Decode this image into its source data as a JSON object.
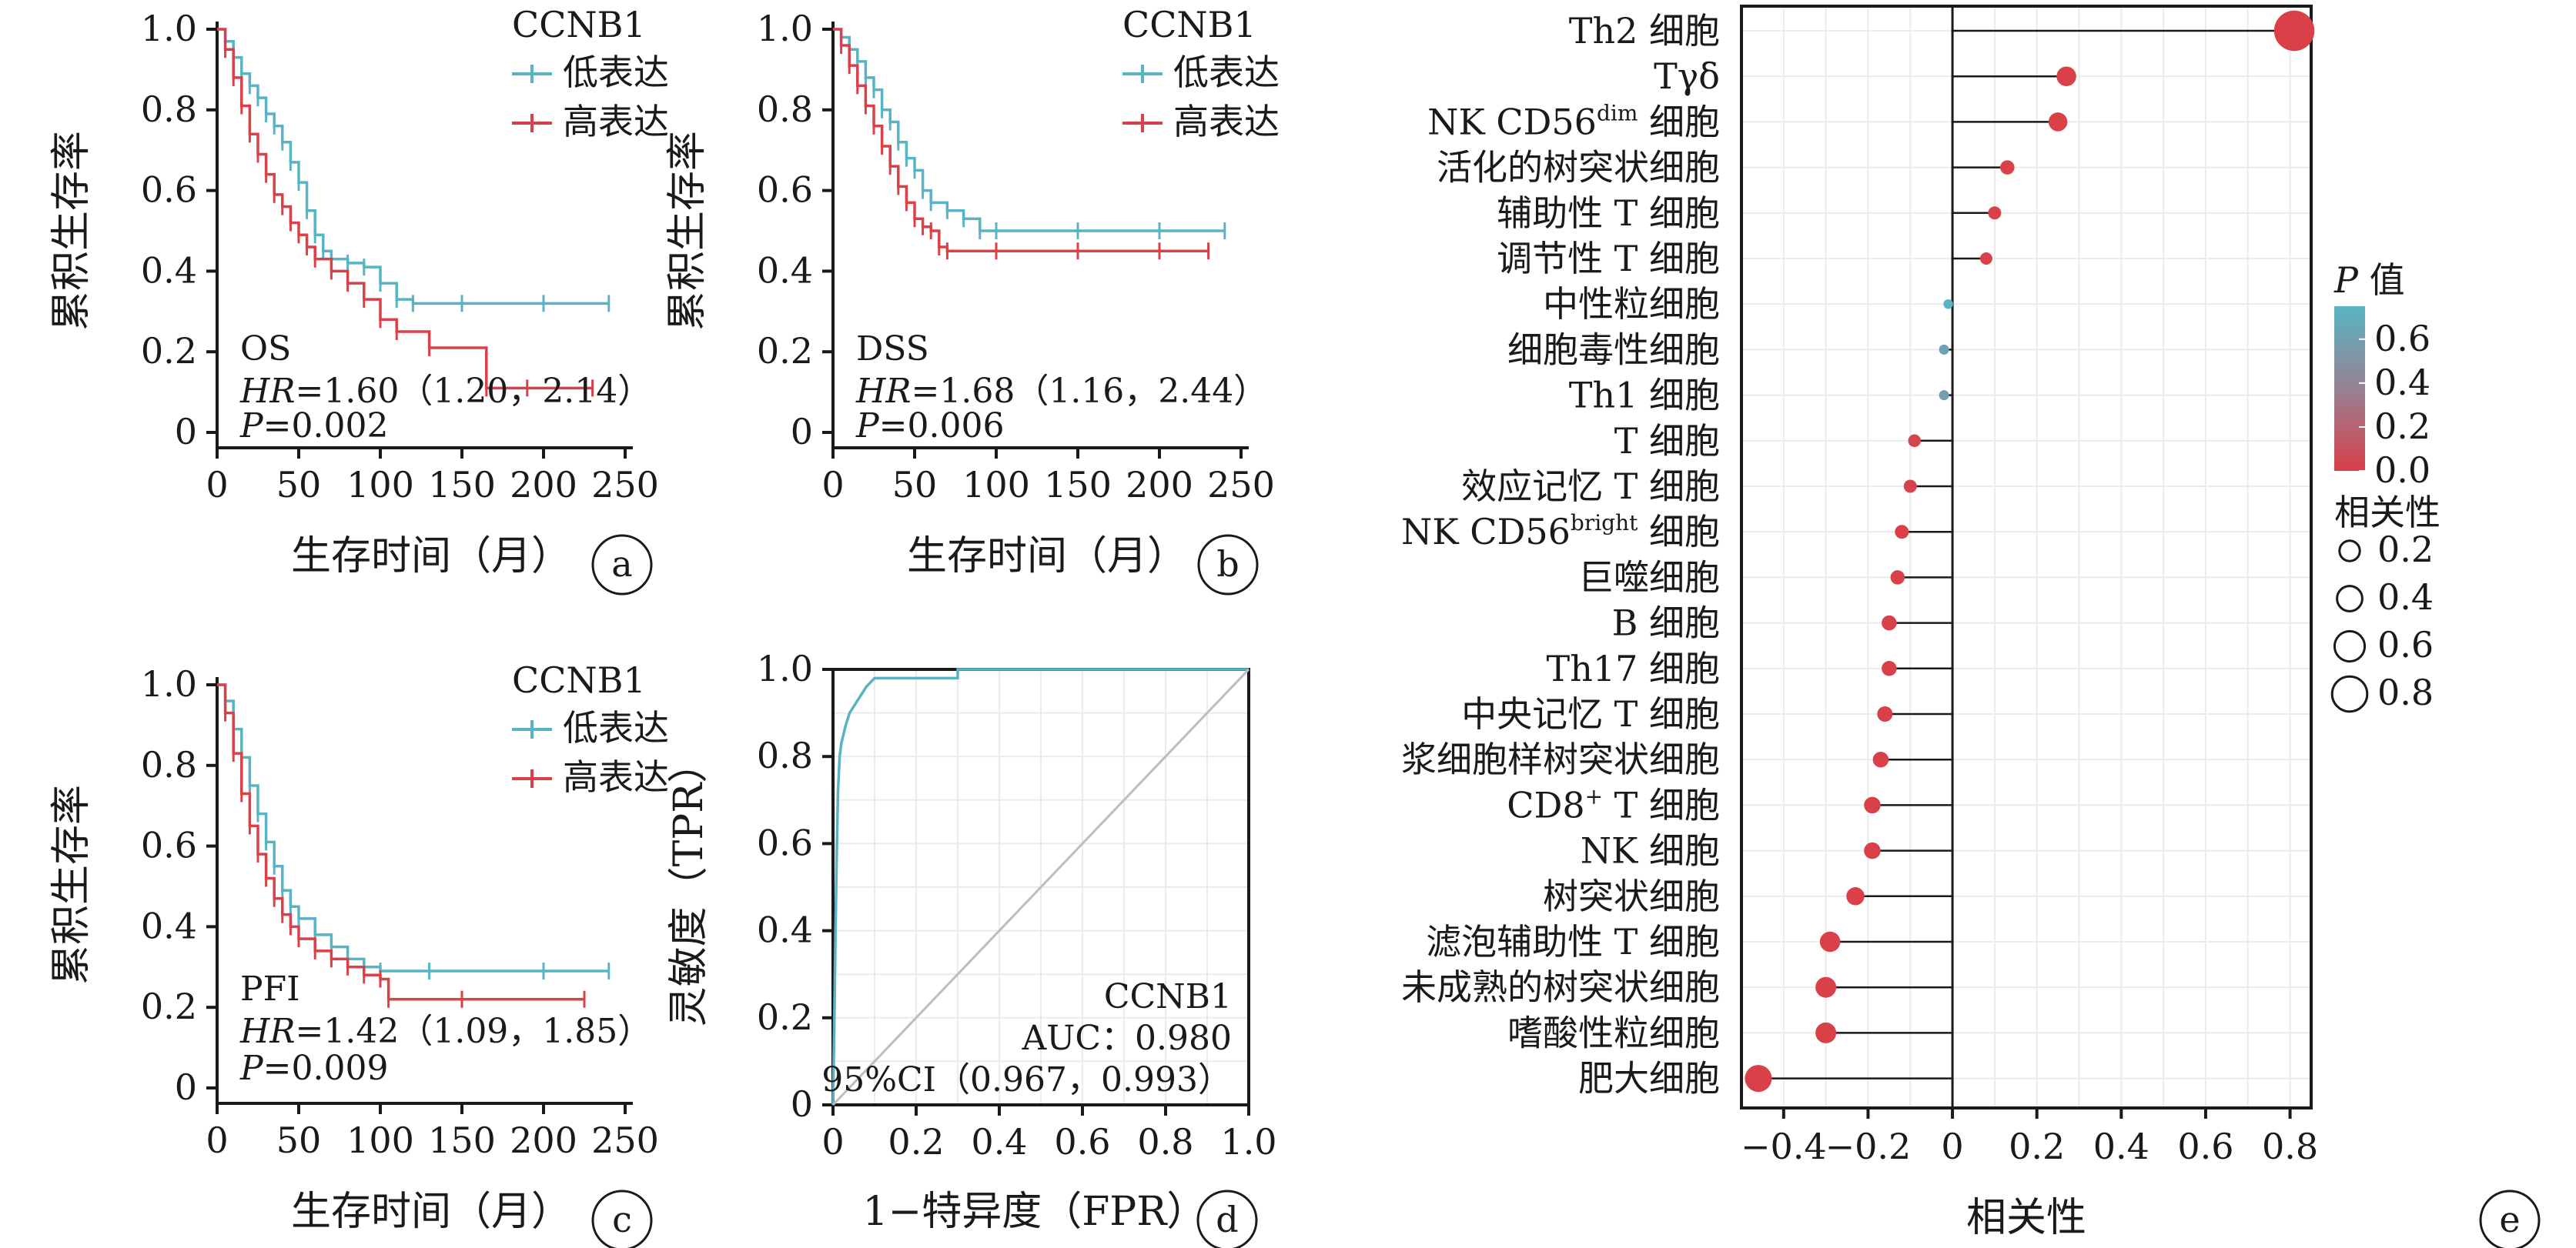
{
  "colors": {
    "low": "#58b4c4",
    "high": "#d94048",
    "grid": "#ebebeb",
    "diag": "#bdbdbd",
    "axis": "#1a1a1a"
  },
  "chart_data": [
    {
      "id": "a",
      "type": "line",
      "ylabel": "累积生存率",
      "xlabel": "生存时间（月）",
      "xlim": [
        0,
        250
      ],
      "ylim": [
        0,
        1.0
      ],
      "xticks": [
        "0",
        "50",
        "100",
        "150",
        "200",
        "250"
      ],
      "yticks": [
        "0",
        "0.2",
        "0.4",
        "0.6",
        "0.8",
        "1.0"
      ],
      "legend_title": "CCNB1",
      "series": [
        {
          "name": "低表达",
          "color": "low",
          "x": [
            0,
            5,
            10,
            15,
            20,
            25,
            30,
            35,
            40,
            45,
            50,
            55,
            60,
            65,
            70,
            80,
            90,
            100,
            110,
            120,
            150,
            200,
            240
          ],
          "y": [
            1.0,
            0.97,
            0.93,
            0.89,
            0.86,
            0.83,
            0.79,
            0.76,
            0.72,
            0.67,
            0.62,
            0.55,
            0.49,
            0.45,
            0.43,
            0.42,
            0.41,
            0.37,
            0.33,
            0.32,
            0.32,
            0.32,
            0.32
          ]
        },
        {
          "name": "高表达",
          "color": "high",
          "x": [
            0,
            5,
            10,
            15,
            20,
            25,
            30,
            35,
            40,
            45,
            50,
            55,
            60,
            70,
            80,
            90,
            100,
            110,
            130,
            165,
            190,
            230
          ],
          "y": [
            1.0,
            0.95,
            0.88,
            0.81,
            0.74,
            0.69,
            0.64,
            0.59,
            0.56,
            0.52,
            0.49,
            0.46,
            0.43,
            0.4,
            0.37,
            0.33,
            0.28,
            0.25,
            0.21,
            0.11,
            0.11,
            0.11
          ]
        }
      ],
      "annotations": [
        "OS",
        "HR=1.60（1.20，2.14）",
        "P=0.002"
      ],
      "panel_label": "a"
    },
    {
      "id": "b",
      "type": "line",
      "ylabel": "累积生存率",
      "xlabel": "生存时间（月）",
      "xlim": [
        0,
        250
      ],
      "ylim": [
        0,
        1.0
      ],
      "xticks": [
        "0",
        "50",
        "100",
        "150",
        "200",
        "250"
      ],
      "yticks": [
        "0",
        "0.2",
        "0.4",
        "0.6",
        "0.8",
        "1.0"
      ],
      "legend_title": "CCNB1",
      "series": [
        {
          "name": "低表达",
          "color": "low",
          "x": [
            0,
            5,
            10,
            15,
            20,
            25,
            30,
            35,
            40,
            45,
            50,
            55,
            60,
            70,
            80,
            90,
            100,
            150,
            200,
            240
          ],
          "y": [
            1.0,
            0.98,
            0.95,
            0.92,
            0.88,
            0.85,
            0.8,
            0.77,
            0.72,
            0.68,
            0.65,
            0.6,
            0.57,
            0.55,
            0.53,
            0.5,
            0.5,
            0.5,
            0.5,
            0.5
          ]
        },
        {
          "name": "高表达",
          "color": "high",
          "x": [
            0,
            5,
            10,
            15,
            20,
            25,
            30,
            35,
            40,
            45,
            50,
            55,
            60,
            65,
            70,
            100,
            150,
            200,
            230
          ],
          "y": [
            1.0,
            0.96,
            0.91,
            0.86,
            0.81,
            0.76,
            0.71,
            0.66,
            0.61,
            0.57,
            0.53,
            0.51,
            0.5,
            0.46,
            0.45,
            0.45,
            0.45,
            0.45,
            0.45
          ]
        }
      ],
      "annotations": [
        "DSS",
        "HR=1.68（1.16，2.44）",
        "P=0.006"
      ],
      "panel_label": "b"
    },
    {
      "id": "c",
      "type": "line",
      "ylabel": "累积生存率",
      "xlabel": "生存时间（月）",
      "xlim": [
        0,
        250
      ],
      "ylim": [
        0,
        1.0
      ],
      "xticks": [
        "0",
        "50",
        "100",
        "150",
        "200",
        "250"
      ],
      "yticks": [
        "0",
        "0.2",
        "0.4",
        "0.6",
        "0.8",
        "1.0"
      ],
      "legend_title": "CCNB1",
      "series": [
        {
          "name": "低表达",
          "color": "low",
          "x": [
            0,
            5,
            10,
            15,
            20,
            25,
            30,
            35,
            40,
            45,
            50,
            60,
            70,
            80,
            90,
            100,
            130,
            200,
            240
          ],
          "y": [
            1.0,
            0.96,
            0.89,
            0.82,
            0.75,
            0.68,
            0.61,
            0.55,
            0.49,
            0.45,
            0.42,
            0.38,
            0.35,
            0.32,
            0.3,
            0.29,
            0.29,
            0.29,
            0.29
          ]
        },
        {
          "name": "高表达",
          "color": "high",
          "x": [
            0,
            5,
            10,
            15,
            20,
            25,
            30,
            35,
            40,
            45,
            50,
            60,
            70,
            80,
            90,
            100,
            105,
            150,
            225
          ],
          "y": [
            1.0,
            0.93,
            0.83,
            0.73,
            0.65,
            0.58,
            0.52,
            0.47,
            0.43,
            0.4,
            0.37,
            0.34,
            0.32,
            0.3,
            0.28,
            0.27,
            0.22,
            0.22,
            0.22
          ]
        }
      ],
      "annotations": [
        "PFI",
        "HR=1.42（1.09，1.85）",
        "P=0.009"
      ],
      "panel_label": "c"
    },
    {
      "id": "d",
      "type": "line",
      "ylabel": "灵敏度（TPR）",
      "xlabel": "1−特异度（FPR）",
      "xlim": [
        0,
        1.0
      ],
      "ylim": [
        0,
        1.0
      ],
      "xticks": [
        "0",
        "0.2",
        "0.4",
        "0.6",
        "0.8",
        "1.0"
      ],
      "yticks": [
        "0",
        "0.2",
        "0.4",
        "0.6",
        "0.8",
        "1.0"
      ],
      "series": [
        {
          "name": "ROC",
          "color": "low",
          "x": [
            0,
            0.003,
            0.006,
            0.009,
            0.012,
            0.016,
            0.02,
            0.03,
            0.04,
            0.06,
            0.08,
            0.1,
            0.3,
            0.3,
            1.0
          ],
          "y": [
            0,
            0.18,
            0.4,
            0.58,
            0.72,
            0.8,
            0.83,
            0.87,
            0.9,
            0.93,
            0.96,
            0.98,
            0.98,
            1.0,
            1.0
          ]
        },
        {
          "name": "diagonal",
          "color": "diag",
          "x": [
            0,
            1
          ],
          "y": [
            0,
            1
          ]
        }
      ],
      "annotations": [
        "CCNB1",
        "AUC：0.980",
        "95%CI（0.967，0.993）"
      ],
      "panel_label": "d"
    },
    {
      "id": "e",
      "type": "lollipop",
      "xlabel": "相关性",
      "xlim": [
        -0.5,
        0.85
      ],
      "xticks": [
        "−0.4",
        "−0.2",
        "0",
        "0.2",
        "0.4",
        "0.6",
        "0.8"
      ],
      "xtick_values": [
        -0.4,
        -0.2,
        0,
        0.2,
        0.4,
        0.6,
        0.8
      ],
      "cells": [
        {
          "name": "Th2 细胞",
          "r": 0.81,
          "p": 0.0
        },
        {
          "name": "Tγδ",
          "r": 0.27,
          "p": 0.0
        },
        {
          "name": "NK CD56",
          "sup": "dim",
          "tail": " 细胞",
          "r": 0.25,
          "p": 0.0
        },
        {
          "name": "活化的树突状细胞",
          "r": 0.13,
          "p": 0.0
        },
        {
          "name": "辅助性 T 细胞",
          "r": 0.1,
          "p": 0.0
        },
        {
          "name": "调节性 T 细胞",
          "r": 0.08,
          "p": 0.01
        },
        {
          "name": "中性粒细胞",
          "r": -0.01,
          "p": 0.75
        },
        {
          "name": "细胞毒性细胞",
          "r": -0.02,
          "p": 0.62
        },
        {
          "name": "Th1 细胞",
          "r": -0.02,
          "p": 0.58
        },
        {
          "name": "T 细胞",
          "r": -0.09,
          "p": 0.03
        },
        {
          "name": "效应记忆 T 细胞",
          "r": -0.1,
          "p": 0.02
        },
        {
          "name": "NK CD56",
          "sup": "bright",
          "tail": " 细胞",
          "r": -0.12,
          "p": 0.0
        },
        {
          "name": "巨噬细胞",
          "r": -0.13,
          "p": 0.0
        },
        {
          "name": "B 细胞",
          "r": -0.15,
          "p": 0.0
        },
        {
          "name": "Th17 细胞",
          "r": -0.15,
          "p": 0.0
        },
        {
          "name": "中央记忆 T 细胞",
          "r": -0.16,
          "p": 0.0
        },
        {
          "name": "浆细胞样树突状细胞",
          "r": -0.17,
          "p": 0.0
        },
        {
          "name": "CD8",
          "sup": "+",
          "tail": " T 细胞",
          "r": -0.19,
          "p": 0.0
        },
        {
          "name": "NK 细胞",
          "r": -0.19,
          "p": 0.0
        },
        {
          "name": "树突状细胞",
          "r": -0.23,
          "p": 0.0
        },
        {
          "name": "滤泡辅助性 T 细胞",
          "r": -0.29,
          "p": 0.0
        },
        {
          "name": "未成熟的树突状细胞",
          "r": -0.3,
          "p": 0.0
        },
        {
          "name": "嗜酸性粒细胞",
          "r": -0.3,
          "p": 0.0
        },
        {
          "name": "肥大细胞",
          "r": -0.46,
          "p": 0.0
        }
      ],
      "legend_p_title": "值",
      "legend_p_title_italic": "P",
      "legend_p_ticks": [
        "0.6",
        "0.4",
        "0.2",
        "0.0"
      ],
      "legend_p_values": [
        0.6,
        0.4,
        0.2,
        0.0
      ],
      "legend_size_title": "相关性",
      "legend_size_ticks": [
        "0.2",
        "0.4",
        "0.6",
        "0.8"
      ],
      "legend_size_values": [
        0.2,
        0.4,
        0.6,
        0.8
      ],
      "panel_label": "e"
    }
  ]
}
